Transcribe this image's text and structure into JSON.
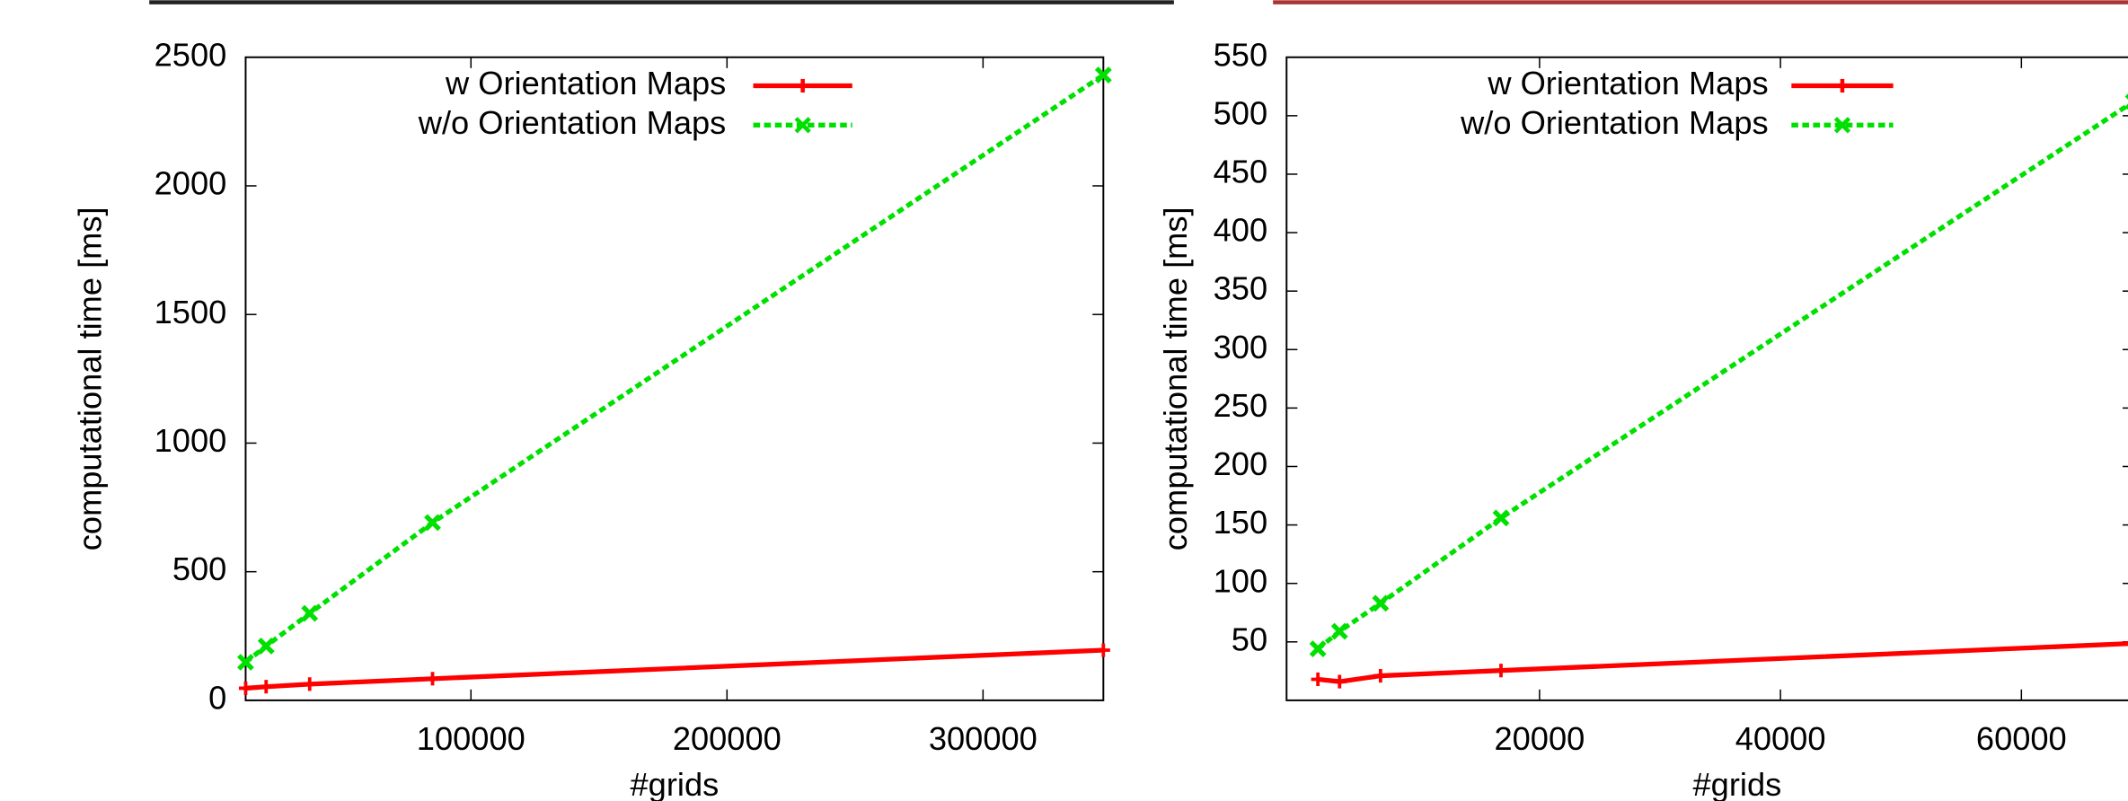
{
  "chart_data": [
    {
      "type": "line",
      "x_label": "#grids",
      "y_label": "computational time [ms]",
      "xlim": [
        12000,
        347000
      ],
      "xticks": [
        100000,
        200000,
        300000
      ],
      "ylim": [
        0,
        2500
      ],
      "yticks": [
        0,
        500,
        1000,
        1500,
        2000,
        2500
      ],
      "x": [
        12000,
        20000,
        37000,
        85000,
        347000
      ],
      "legend": "top-right",
      "series": [
        {
          "name": "w Orientation Maps",
          "color": "#ff0000",
          "values": [
            47,
            53,
            63,
            84,
            195
          ]
        },
        {
          "name": "w/o Orientation Maps",
          "color": "#00e000",
          "values": [
            148,
            211,
            338,
            691,
            2431
          ]
        }
      ]
    },
    {
      "type": "line",
      "x_label": "#grids",
      "y_label": "computational time [ms]",
      "xlim": [
        -1000,
        69300
      ],
      "xticks": [
        20000,
        40000,
        60000
      ],
      "ylim": [
        0,
        550
      ],
      "yticks": [
        50,
        100,
        150,
        200,
        250,
        300,
        350,
        400,
        450,
        500,
        550
      ],
      "x": [
        1600,
        3400,
        6800,
        16800,
        69300
      ],
      "legend": "top-right",
      "series": [
        {
          "name": "w Orientation Maps",
          "color": "#ff0000",
          "values": [
            18,
            16,
            21,
            25.5,
            48.7
          ]
        },
        {
          "name": "w/o Orientation Maps",
          "color": "#00e000",
          "values": [
            44,
            59,
            83,
            156,
            512
          ]
        }
      ]
    }
  ]
}
